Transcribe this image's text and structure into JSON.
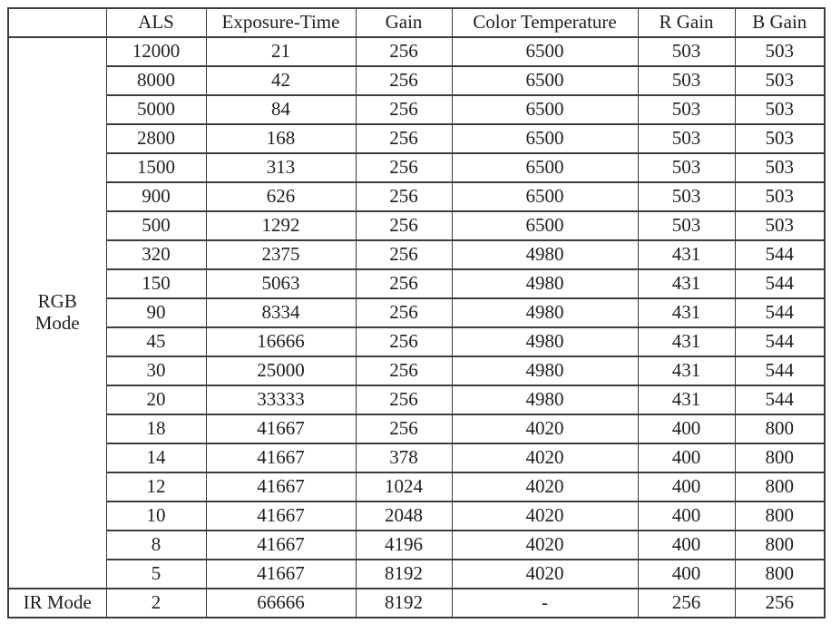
{
  "page": {
    "background": "#ffffff",
    "border_color": "#3c3c3c",
    "text_color": "#1f1f1f"
  },
  "chart_data": {
    "type": "table",
    "columns": [
      "",
      "ALS",
      "Exposure-Time",
      "Gain",
      "Color Temperature",
      "R Gain",
      "B Gain"
    ],
    "row_groups": [
      {
        "label": "RGB Mode",
        "rows": [
          [
            "12000",
            "21",
            "256",
            "6500",
            "503",
            "503"
          ],
          [
            "8000",
            "42",
            "256",
            "6500",
            "503",
            "503"
          ],
          [
            "5000",
            "84",
            "256",
            "6500",
            "503",
            "503"
          ],
          [
            "2800",
            "168",
            "256",
            "6500",
            "503",
            "503"
          ],
          [
            "1500",
            "313",
            "256",
            "6500",
            "503",
            "503"
          ],
          [
            "900",
            "626",
            "256",
            "6500",
            "503",
            "503"
          ],
          [
            "500",
            "1292",
            "256",
            "6500",
            "503",
            "503"
          ],
          [
            "320",
            "2375",
            "256",
            "4980",
            "431",
            "544"
          ],
          [
            "150",
            "5063",
            "256",
            "4980",
            "431",
            "544"
          ],
          [
            "90",
            "8334",
            "256",
            "4980",
            "431",
            "544"
          ],
          [
            "45",
            "16666",
            "256",
            "4980",
            "431",
            "544"
          ],
          [
            "30",
            "25000",
            "256",
            "4980",
            "431",
            "544"
          ],
          [
            "20",
            "33333",
            "256",
            "4980",
            "431",
            "544"
          ],
          [
            "18",
            "41667",
            "256",
            "4020",
            "400",
            "800"
          ],
          [
            "14",
            "41667",
            "378",
            "4020",
            "400",
            "800"
          ],
          [
            "12",
            "41667",
            "1024",
            "4020",
            "400",
            "800"
          ],
          [
            "10",
            "41667",
            "2048",
            "4020",
            "400",
            "800"
          ],
          [
            "8",
            "41667",
            "4196",
            "4020",
            "400",
            "800"
          ],
          [
            "5",
            "41667",
            "8192",
            "4020",
            "400",
            "800"
          ]
        ]
      },
      {
        "label": "IR Mode",
        "rows": [
          [
            "2",
            "66666",
            "8192",
            "-",
            "256",
            "256"
          ]
        ]
      }
    ]
  }
}
